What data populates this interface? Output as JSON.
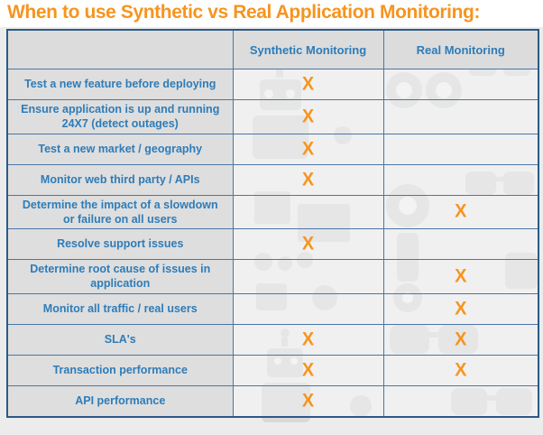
{
  "title": "When to use Synthetic vs Real Application Monitoring:",
  "table": {
    "columns": [
      "",
      "Synthetic Monitoring",
      "Real Monitoring"
    ],
    "mark": "X",
    "rows": [
      {
        "label": "Test a new feature before deploying",
        "synthetic": true,
        "real": false
      },
      {
        "label": "Ensure application is up and running 24X7 (detect outages)",
        "synthetic": true,
        "real": false
      },
      {
        "label": "Test a new market / geography",
        "synthetic": true,
        "real": false
      },
      {
        "label": "Monitor web third party / APIs",
        "synthetic": true,
        "real": false
      },
      {
        "label": "Determine the impact of a slowdown or failure on all users",
        "synthetic": false,
        "real": true
      },
      {
        "label": "Resolve support issues",
        "synthetic": true,
        "real": false
      },
      {
        "label": "Determine root cause of issues in application",
        "synthetic": false,
        "real": true
      },
      {
        "label": "Monitor all traffic / real users",
        "synthetic": false,
        "real": true
      },
      {
        "label": "SLA's",
        "synthetic": true,
        "real": true
      },
      {
        "label": "Transaction performance",
        "synthetic": true,
        "real": true
      },
      {
        "label": "API performance",
        "synthetic": true,
        "real": false
      }
    ]
  },
  "colors": {
    "title_orange": "#F7941E",
    "text_blue": "#2E7CB8",
    "border_outer": "#2C5985",
    "border_inner": "#4A76A4",
    "mark_orange": "#F7941E"
  }
}
